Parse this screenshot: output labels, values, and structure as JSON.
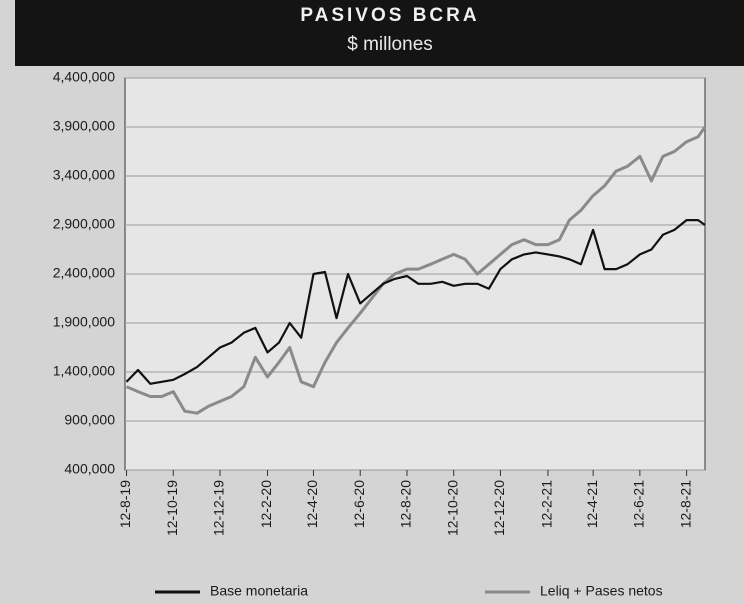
{
  "chart_data": {
    "type": "line",
    "title": "PASIVOS BCRA",
    "subtitle": "$ millones",
    "x": [
      "2019-08-12",
      "2019-08-27",
      "2019-09-12",
      "2019-09-27",
      "2019-10-12",
      "2019-10-27",
      "2019-11-12",
      "2019-11-27",
      "2019-12-12",
      "2019-12-27",
      "2020-01-12",
      "2020-01-27",
      "2020-02-12",
      "2020-02-27",
      "2020-03-12",
      "2020-03-27",
      "2020-04-12",
      "2020-04-27",
      "2020-05-12",
      "2020-05-27",
      "2020-06-12",
      "2020-06-27",
      "2020-07-12",
      "2020-07-27",
      "2020-08-12",
      "2020-08-27",
      "2020-09-12",
      "2020-09-27",
      "2020-10-12",
      "2020-10-27",
      "2020-11-12",
      "2020-11-27",
      "2020-12-12",
      "2020-12-27",
      "2021-01-12",
      "2021-01-27",
      "2021-02-12",
      "2021-02-27",
      "2021-03-12",
      "2021-03-27",
      "2021-04-12",
      "2021-04-27",
      "2021-05-12",
      "2021-05-27",
      "2021-06-12",
      "2021-06-27",
      "2021-07-12",
      "2021-07-27",
      "2021-08-12",
      "2021-08-27",
      "2021-09-05"
    ],
    "series": [
      {
        "name": "Base monetaria",
        "color": "#111111",
        "values": [
          1300000,
          1420000,
          1280000,
          1300000,
          1320000,
          1380000,
          1450000,
          1550000,
          1650000,
          1700000,
          1800000,
          1850000,
          1600000,
          1700000,
          1900000,
          1750000,
          2400000,
          2420000,
          1950000,
          2400000,
          2100000,
          2200000,
          2300000,
          2350000,
          2380000,
          2300000,
          2300000,
          2320000,
          2280000,
          2300000,
          2300000,
          2250000,
          2450000,
          2550000,
          2600000,
          2620000,
          2600000,
          2580000,
          2550000,
          2500000,
          2850000,
          2450000,
          2450000,
          2500000,
          2600000,
          2650000,
          2800000,
          2850000,
          2950000,
          2950000,
          2900000
        ]
      },
      {
        "name": "Leliq + Pases netos",
        "color": "#8a8a8a",
        "values": [
          1250000,
          1200000,
          1150000,
          1150000,
          1200000,
          1000000,
          980000,
          1050000,
          1100000,
          1150000,
          1250000,
          1550000,
          1350000,
          1500000,
          1650000,
          1300000,
          1250000,
          1500000,
          1700000,
          1850000,
          2000000,
          2150000,
          2300000,
          2400000,
          2450000,
          2450000,
          2500000,
          2550000,
          2600000,
          2550000,
          2400000,
          2500000,
          2600000,
          2700000,
          2750000,
          2700000,
          2700000,
          2750000,
          2950000,
          3050000,
          3200000,
          3300000,
          3450000,
          3500000,
          3600000,
          3350000,
          3600000,
          3650000,
          3750000,
          3800000,
          3900000
        ]
      }
    ],
    "xlim": [
      "2019-08-10",
      "2021-09-05"
    ],
    "xticks": [
      {
        "value": "2019-08-12",
        "label": "12-8-19"
      },
      {
        "value": "2019-10-12",
        "label": "12-10-19"
      },
      {
        "value": "2019-12-12",
        "label": "12-12-19"
      },
      {
        "value": "2020-02-12",
        "label": "12-2-20"
      },
      {
        "value": "2020-04-12",
        "label": "12-4-20"
      },
      {
        "value": "2020-06-12",
        "label": "12-6-20"
      },
      {
        "value": "2020-08-12",
        "label": "12-8-20"
      },
      {
        "value": "2020-10-12",
        "label": "12-10-20"
      },
      {
        "value": "2020-12-12",
        "label": "12-12-20"
      },
      {
        "value": "2021-02-12",
        "label": "12-2-21"
      },
      {
        "value": "2021-04-12",
        "label": "12-4-21"
      },
      {
        "value": "2021-06-12",
        "label": "12-6-21"
      },
      {
        "value": "2021-08-12",
        "label": "12-8-21"
      }
    ],
    "ylim": [
      400000,
      4400000
    ],
    "yticks": [
      {
        "value": 400000,
        "label": "400,000"
      },
      {
        "value": 900000,
        "label": "900,000"
      },
      {
        "value": 1400000,
        "label": "1,400,000"
      },
      {
        "value": 1900000,
        "label": "1,900,000"
      },
      {
        "value": 2400000,
        "label": "2,400,000"
      },
      {
        "value": 2900000,
        "label": "2,900,000"
      },
      {
        "value": 3400000,
        "label": "3,400,000"
      },
      {
        "value": 3900000,
        "label": "3,900,000"
      },
      {
        "value": 4400000,
        "label": "4,400,000"
      }
    ],
    "grid": true,
    "legend": "bottom"
  }
}
